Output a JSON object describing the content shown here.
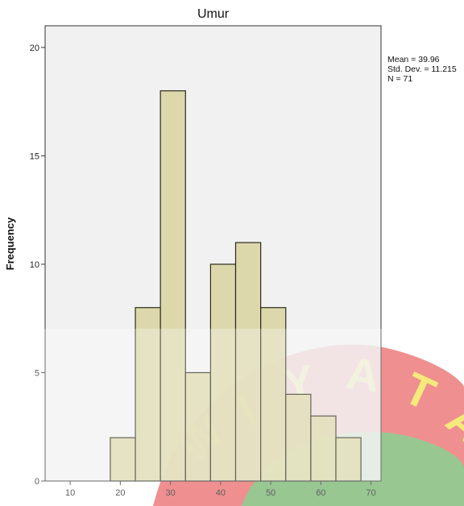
{
  "chart_data": {
    "type": "bar",
    "title": "Umur",
    "xlabel": "",
    "ylabel": "Frequency",
    "xlim": [
      5,
      72
    ],
    "ylim": [
      0,
      21
    ],
    "x_ticks": [
      10,
      20,
      30,
      40,
      50,
      60,
      70
    ],
    "y_ticks": [
      0,
      5,
      10,
      15,
      20
    ],
    "bins": [
      {
        "start": 18,
        "end": 23,
        "value": 2
      },
      {
        "start": 23,
        "end": 28,
        "value": 8
      },
      {
        "start": 28,
        "end": 33,
        "value": 18
      },
      {
        "start": 33,
        "end": 38,
        "value": 5
      },
      {
        "start": 38,
        "end": 43,
        "value": 10
      },
      {
        "start": 43,
        "end": 48,
        "value": 11
      },
      {
        "start": 48,
        "end": 53,
        "value": 8
      },
      {
        "start": 53,
        "end": 58,
        "value": 4
      },
      {
        "start": 58,
        "end": 63,
        "value": 3
      },
      {
        "start": 63,
        "end": 68,
        "value": 2
      }
    ],
    "stats": {
      "mean": "Mean = 39.96",
      "std_dev": "Std. Dev. = 11.215",
      "n": "N = 71"
    },
    "grid": false,
    "colors": {
      "plot_background": "#efefef",
      "bar_fill": "#d8d3a0",
      "bar_stroke": "#2a2a1a"
    }
  },
  "watermark": {
    "text": "WIYATA",
    "colors": {
      "red": "#e84a4a",
      "green": "#5cc06a",
      "yellow": "#f2e24a"
    }
  }
}
